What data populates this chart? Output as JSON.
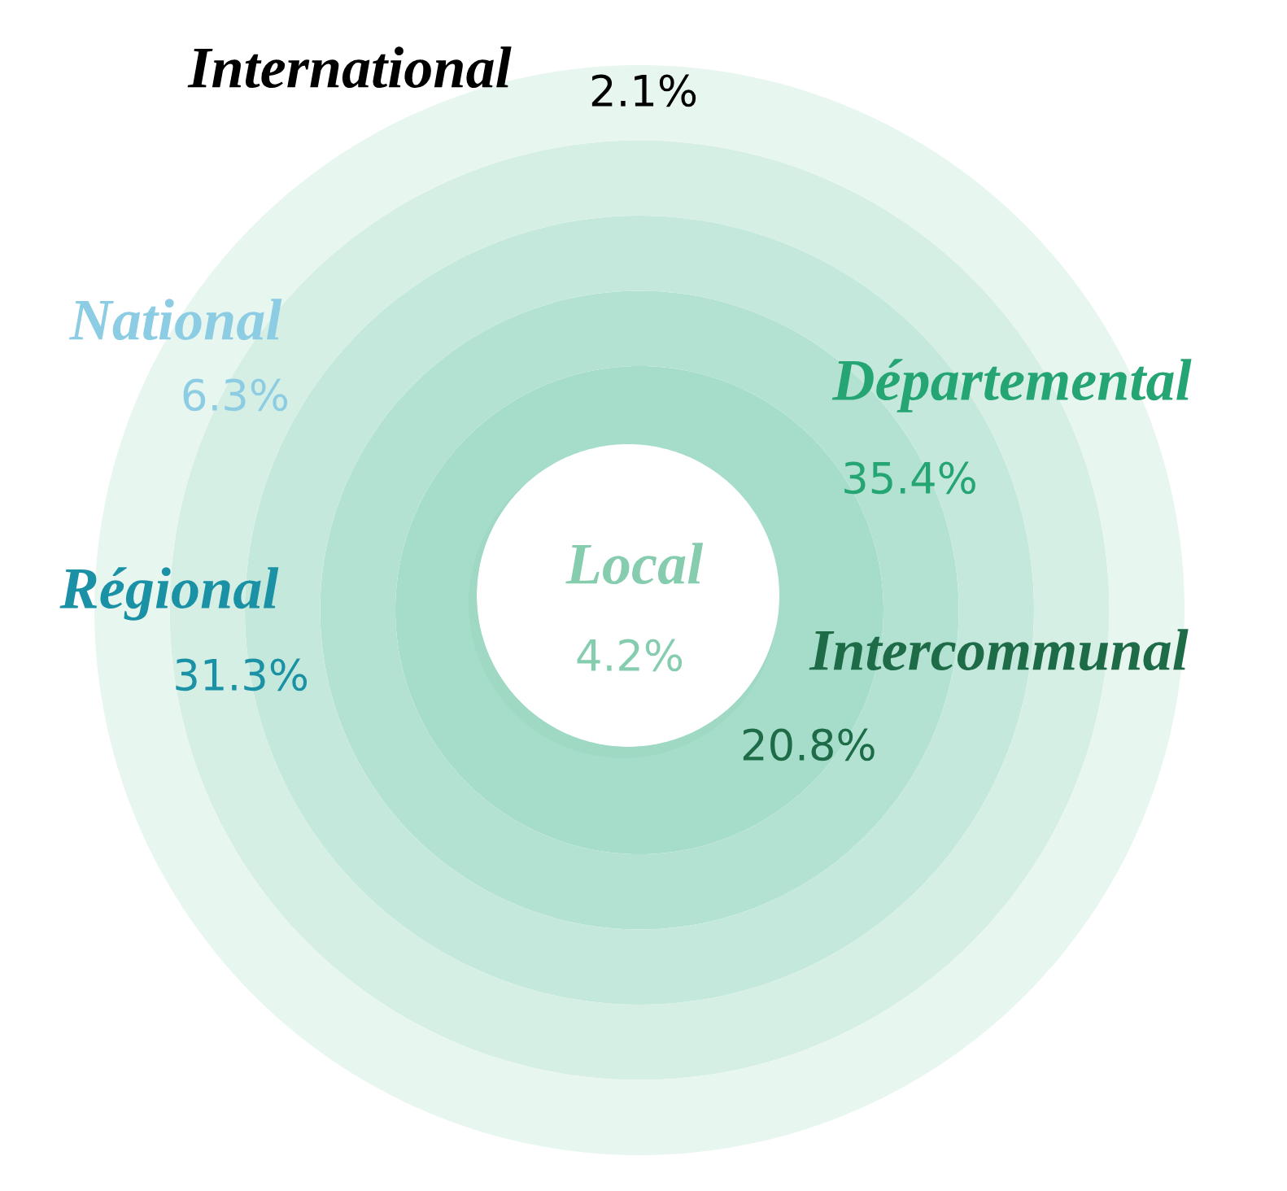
{
  "chart_data": {
    "type": "other",
    "categories": [
      "Local",
      "Intercommunal",
      "Départemental",
      "Régional",
      "National",
      "International"
    ],
    "values": [
      4.2,
      20.8,
      35.4,
      31.3,
      6.3,
      2.1
    ],
    "value_labels": [
      "4.2%",
      "20.8%",
      "35.4%",
      "31.3%",
      "6.3%",
      "2.1%"
    ]
  }
}
